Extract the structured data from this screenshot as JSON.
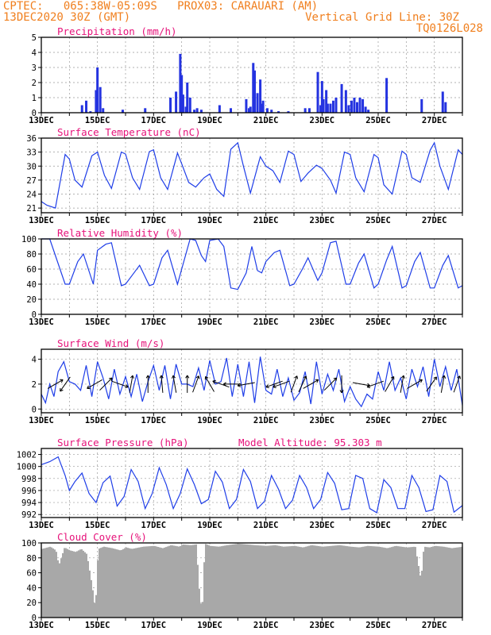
{
  "header": {
    "line1": "CPTEC:   065:38W-05:09S   PROX03: CARAUARI (AM)",
    "line2": "13DEC2020 30Z (GMT)",
    "grid_line": "Vertical Grid Line: 30Z",
    "code": "TQ0126L028"
  },
  "colors": {
    "header": "#f07f1e",
    "title": "#e6127a",
    "line": "#1f3ee8",
    "bar": "#2433e0",
    "cloud": "#a8a8a8",
    "grid": "#999999"
  },
  "x_tick_labels": [
    "13DEC",
    "15DEC",
    "17DEC",
    "19DEC",
    "21DEC",
    "23DEC",
    "25DEC",
    "27DEC"
  ],
  "x_tick_days": [
    13,
    15,
    17,
    19,
    21,
    23,
    25,
    27
  ],
  "x_range_days": [
    13.0,
    28.0
  ],
  "chart_data": [
    {
      "type": "bar",
      "title": "Precipitation (mm/h)",
      "ylim": [
        0,
        5
      ],
      "yticks": [
        "0",
        "1",
        "2",
        "3",
        "4",
        "5"
      ],
      "grid": true,
      "x_unit": "day of month (DEC 2020)",
      "x": [
        14.45,
        14.6,
        14.75,
        14.95,
        15.0,
        15.1,
        15.2,
        15.9,
        16.7,
        17.6,
        17.8,
        17.95,
        18.0,
        18.05,
        18.15,
        18.2,
        18.3,
        18.45,
        18.55,
        18.7,
        19.35,
        19.75,
        20.3,
        20.4,
        20.45,
        20.55,
        20.6,
        20.7,
        20.8,
        20.85,
        20.9,
        21.05,
        21.2,
        21.45,
        21.8,
        22.4,
        22.55,
        22.85,
        22.95,
        23.0,
        23.05,
        23.15,
        23.2,
        23.3,
        23.4,
        23.5,
        23.7,
        23.85,
        23.95,
        24.05,
        24.15,
        24.25,
        24.35,
        24.45,
        24.55,
        24.65,
        25.3,
        26.55,
        27.3,
        27.4
      ],
      "values": [
        0.5,
        0.8,
        0.1,
        1.5,
        3.0,
        1.7,
        0.3,
        0.2,
        0.3,
        1.0,
        1.4,
        3.9,
        2.5,
        1.2,
        0.4,
        2.0,
        1.0,
        0.2,
        0.3,
        0.2,
        0.5,
        0.3,
        0.9,
        0.3,
        0.4,
        3.3,
        2.8,
        1.3,
        2.2,
        0.6,
        0.8,
        0.3,
        0.2,
        0.1,
        0.1,
        0.3,
        0.3,
        2.7,
        0.5,
        2.1,
        0.9,
        1.5,
        0.6,
        0.6,
        0.8,
        1.0,
        1.9,
        1.5,
        0.5,
        0.8,
        1.0,
        0.7,
        1.0,
        0.9,
        0.4,
        0.2,
        2.3,
        0.9,
        1.4,
        0.7
      ]
    },
    {
      "type": "line",
      "title": "Surface Temperature (nC)",
      "ylim": [
        20,
        36
      ],
      "yticks": [
        "21",
        "24",
        "27",
        "30",
        "33",
        "36"
      ],
      "ytick_values": [
        21,
        24,
        27,
        30,
        33,
        36
      ],
      "grid": true,
      "x_unit": "day of month (DEC 2020)",
      "x": [
        13.0,
        13.2,
        13.5,
        13.85,
        14.0,
        14.2,
        14.45,
        14.8,
        15.0,
        15.25,
        15.5,
        15.85,
        16.0,
        16.25,
        16.5,
        16.85,
        17.0,
        17.25,
        17.5,
        17.85,
        18.0,
        18.25,
        18.5,
        18.8,
        19.0,
        19.25,
        19.5,
        19.75,
        20.0,
        20.2,
        20.45,
        20.8,
        21.0,
        21.25,
        21.5,
        21.8,
        22.0,
        22.25,
        22.5,
        22.8,
        23.0,
        23.3,
        23.5,
        23.8,
        24.0,
        24.2,
        24.5,
        24.85,
        25.0,
        25.2,
        25.5,
        25.85,
        26.0,
        26.2,
        26.5,
        26.85,
        27.0,
        27.2,
        27.5,
        27.85,
        28.0
      ],
      "values": [
        22.4,
        21.6,
        21.0,
        32.5,
        31.5,
        27.0,
        25.5,
        32.2,
        33.0,
        28.0,
        25.2,
        33.0,
        32.6,
        27.5,
        25.0,
        33.1,
        33.5,
        27.5,
        25.0,
        32.8,
        30.5,
        26.5,
        25.5,
        27.5,
        28.3,
        25.0,
        23.5,
        33.6,
        35.0,
        30.0,
        24.2,
        32.0,
        30.0,
        29.0,
        26.5,
        33.2,
        32.5,
        26.7,
        28.5,
        30.2,
        29.5,
        27.0,
        24.2,
        33.0,
        32.5,
        27.5,
        24.5,
        32.5,
        31.8,
        26.0,
        24.0,
        33.2,
        32.5,
        27.5,
        26.5,
        33.4,
        35.0,
        30.0,
        25.0,
        33.5,
        32.5
      ]
    },
    {
      "type": "line",
      "title": "Relative Humidity (%)",
      "ylim": [
        0,
        100
      ],
      "yticks": [
        "0",
        "20",
        "40",
        "60",
        "80",
        "100"
      ],
      "ytick_values": [
        0,
        20,
        40,
        60,
        80,
        100
      ],
      "grid": true,
      "x_unit": "day of month (DEC 2020)",
      "x": [
        13.0,
        13.3,
        13.85,
        14.0,
        14.3,
        14.5,
        14.85,
        15.0,
        15.3,
        15.5,
        15.85,
        16.0,
        16.3,
        16.5,
        16.85,
        17.0,
        17.3,
        17.5,
        17.85,
        18.0,
        18.3,
        18.5,
        18.7,
        18.85,
        19.0,
        19.3,
        19.5,
        19.75,
        20.0,
        20.3,
        20.5,
        20.7,
        20.85,
        21.0,
        21.3,
        21.5,
        21.85,
        22.0,
        22.3,
        22.5,
        22.85,
        23.0,
        23.3,
        23.5,
        23.85,
        24.0,
        24.3,
        24.5,
        24.85,
        25.0,
        25.3,
        25.5,
        25.85,
        26.0,
        26.3,
        26.5,
        26.85,
        27.0,
        27.3,
        27.5,
        27.85,
        28.0
      ],
      "values": [
        100,
        100,
        40,
        40,
        70,
        80,
        40,
        85,
        93,
        95,
        38,
        40,
        55,
        65,
        38,
        40,
        75,
        85,
        40,
        60,
        100,
        98,
        78,
        70,
        98,
        100,
        90,
        35,
        33,
        55,
        90,
        58,
        55,
        70,
        82,
        85,
        38,
        40,
        60,
        75,
        45,
        55,
        95,
        97,
        40,
        40,
        68,
        80,
        35,
        40,
        72,
        90,
        35,
        38,
        70,
        82,
        35,
        35,
        65,
        78,
        35,
        38
      ]
    },
    {
      "type": "line",
      "title": "Surface Wind (m/s)",
      "ylim": [
        -0.3,
        4.8
      ],
      "yticks": [
        "0",
        "2",
        "4"
      ],
      "ytick_values": [
        0,
        2,
        4
      ],
      "grid": true,
      "x_unit": "day of month (DEC 2020)",
      "x": [
        13.0,
        13.15,
        13.3,
        13.45,
        13.6,
        13.8,
        14.0,
        14.2,
        14.4,
        14.6,
        14.8,
        15.0,
        15.2,
        15.4,
        15.6,
        15.8,
        16.0,
        16.2,
        16.4,
        16.6,
        16.8,
        17.0,
        17.2,
        17.4,
        17.6,
        17.8,
        18.0,
        18.2,
        18.4,
        18.6,
        18.8,
        19.0,
        19.2,
        19.4,
        19.6,
        19.8,
        20.0,
        20.2,
        20.4,
        20.6,
        20.8,
        21.0,
        21.2,
        21.4,
        21.6,
        21.8,
        22.0,
        22.2,
        22.4,
        22.6,
        22.8,
        23.0,
        23.2,
        23.4,
        23.6,
        23.8,
        24.0,
        24.2,
        24.4,
        24.6,
        24.8,
        25.0,
        25.2,
        25.4,
        25.6,
        25.8,
        26.0,
        26.2,
        26.4,
        26.6,
        26.8,
        27.0,
        27.2,
        27.4,
        27.6,
        27.8,
        28.0
      ],
      "values": [
        1.2,
        0.5,
        2.0,
        1.0,
        3.0,
        3.8,
        2.2,
        2.0,
        1.5,
        3.5,
        1.0,
        3.8,
        2.5,
        0.8,
        3.2,
        1.2,
        2.6,
        1.0,
        2.8,
        0.6,
        2.2,
        3.5,
        1.5,
        3.5,
        0.8,
        3.6,
        2.0,
        2.0,
        1.8,
        3.3,
        1.5,
        3.9,
        2.0,
        2.2,
        4.1,
        1.0,
        3.6,
        1.0,
        3.8,
        0.5,
        4.2,
        1.5,
        1.2,
        3.2,
        1.0,
        2.5,
        0.7,
        1.3,
        3.0,
        0.4,
        3.8,
        1.2,
        2.8,
        1.5,
        3.2,
        0.6,
        1.8,
        0.8,
        0.2,
        1.2,
        0.8,
        3.0,
        1.5,
        3.8,
        1.5,
        2.5,
        0.8,
        3.2,
        1.8,
        3.4,
        1.0,
        4.0,
        1.8,
        3.4,
        1.5,
        3.2,
        0.3
      ],
      "arrows_x": [
        13.5,
        13.85,
        14.9,
        15.3,
        15.8,
        16.2,
        16.8,
        17.3,
        17.75,
        18.2,
        18.5,
        19.0,
        19.4,
        19.8,
        20.3,
        21.3,
        21.55,
        22.0,
        22.3,
        22.6,
        23.3,
        23.7,
        24.4,
        24.9,
        25.4,
        25.85,
        26.3,
        26.9,
        27.3,
        27.8
      ],
      "arrows_dir_deg": [
        60,
        215,
        240,
        45,
        110,
        10,
        0,
        355,
        350,
        0,
        20,
        330,
        290,
        270,
        260,
        250,
        250,
        20,
        25,
        60,
        45,
        180,
        100,
        250,
        30,
        10,
        60,
        35,
        10,
        20
      ]
    },
    {
      "type": "line",
      "title": "Surface Pressure (hPa)",
      "subtitle": "Model Altitude: 95.303 m",
      "ylim": [
        991.5,
        1003
      ],
      "yticks": [
        "992",
        "994",
        "996",
        "998",
        "1000",
        "1002"
      ],
      "ytick_values": [
        992,
        994,
        996,
        998,
        1000,
        1002
      ],
      "grid": true,
      "x_unit": "day of month (DEC 2020)",
      "x": [
        13.0,
        13.3,
        13.6,
        13.85,
        14.0,
        14.2,
        14.45,
        14.7,
        14.95,
        15.2,
        15.45,
        15.7,
        15.95,
        16.2,
        16.45,
        16.7,
        16.95,
        17.2,
        17.45,
        17.7,
        17.95,
        18.2,
        18.45,
        18.7,
        18.95,
        19.2,
        19.45,
        19.7,
        19.95,
        20.2,
        20.45,
        20.7,
        20.95,
        21.2,
        21.45,
        21.7,
        21.95,
        22.2,
        22.45,
        22.7,
        22.95,
        23.2,
        23.45,
        23.7,
        23.95,
        24.2,
        24.45,
        24.7,
        24.95,
        25.2,
        25.45,
        25.7,
        25.95,
        26.2,
        26.45,
        26.7,
        26.95,
        27.2,
        27.45,
        27.7,
        28.0
      ],
      "values": [
        1000.3,
        1000.8,
        1001.6,
        998.5,
        996.0,
        997.5,
        998.9,
        995.5,
        994.0,
        997.3,
        998.4,
        993.4,
        995.0,
        999.5,
        997.5,
        993.0,
        995.5,
        999.8,
        997.0,
        993.0,
        995.5,
        999.6,
        997.0,
        993.8,
        994.5,
        999.2,
        997.4,
        993.0,
        994.5,
        999.5,
        997.5,
        993.0,
        994.2,
        998.5,
        996.2,
        993.0,
        994.4,
        998.5,
        996.5,
        993.0,
        994.5,
        999.0,
        997.2,
        992.8,
        993.0,
        998.5,
        998.0,
        993.0,
        992.3,
        997.8,
        996.5,
        993.0,
        993.0,
        998.5,
        996.5,
        992.5,
        992.8,
        998.5,
        997.5,
        992.4,
        993.5
      ]
    },
    {
      "type": "area",
      "title": "Cloud Cover (%)",
      "ylim": [
        0,
        100
      ],
      "yticks": [
        "0",
        "20",
        "40",
        "60",
        "80",
        "100"
      ],
      "ytick_values": [
        0,
        20,
        40,
        60,
        80,
        100
      ],
      "grid": true,
      "x_unit": "day of month (DEC 2020)",
      "x": [
        13.0,
        13.3,
        13.5,
        13.6,
        13.8,
        14.0,
        14.2,
        14.4,
        14.6,
        14.8,
        14.9,
        15.0,
        15.2,
        15.5,
        15.8,
        16.0,
        16.2,
        16.6,
        17.0,
        17.3,
        17.6,
        17.9,
        18.0,
        18.3,
        18.5,
        18.6,
        18.7,
        18.8,
        19.0,
        19.3,
        19.6,
        20.0,
        20.3,
        20.6,
        21.0,
        21.3,
        21.6,
        22.0,
        22.3,
        22.6,
        23.0,
        23.3,
        23.6,
        24.0,
        24.3,
        24.6,
        25.0,
        25.3,
        25.6,
        26.0,
        26.3,
        26.5,
        26.6,
        26.8,
        27.0,
        27.3,
        27.6,
        28.0
      ],
      "values": [
        92,
        95,
        90,
        70,
        94,
        90,
        88,
        92,
        85,
        40,
        10,
        92,
        95,
        93,
        90,
        94,
        92,
        95,
        96,
        93,
        97,
        95,
        98,
        97,
        98,
        40,
        5,
        99,
        96,
        95,
        97,
        99,
        98,
        97,
        96,
        97,
        95,
        96,
        94,
        97,
        95,
        96,
        97,
        95,
        94,
        96,
        95,
        93,
        96,
        94,
        95,
        50,
        95,
        94,
        96,
        95,
        93,
        95
      ]
    }
  ]
}
